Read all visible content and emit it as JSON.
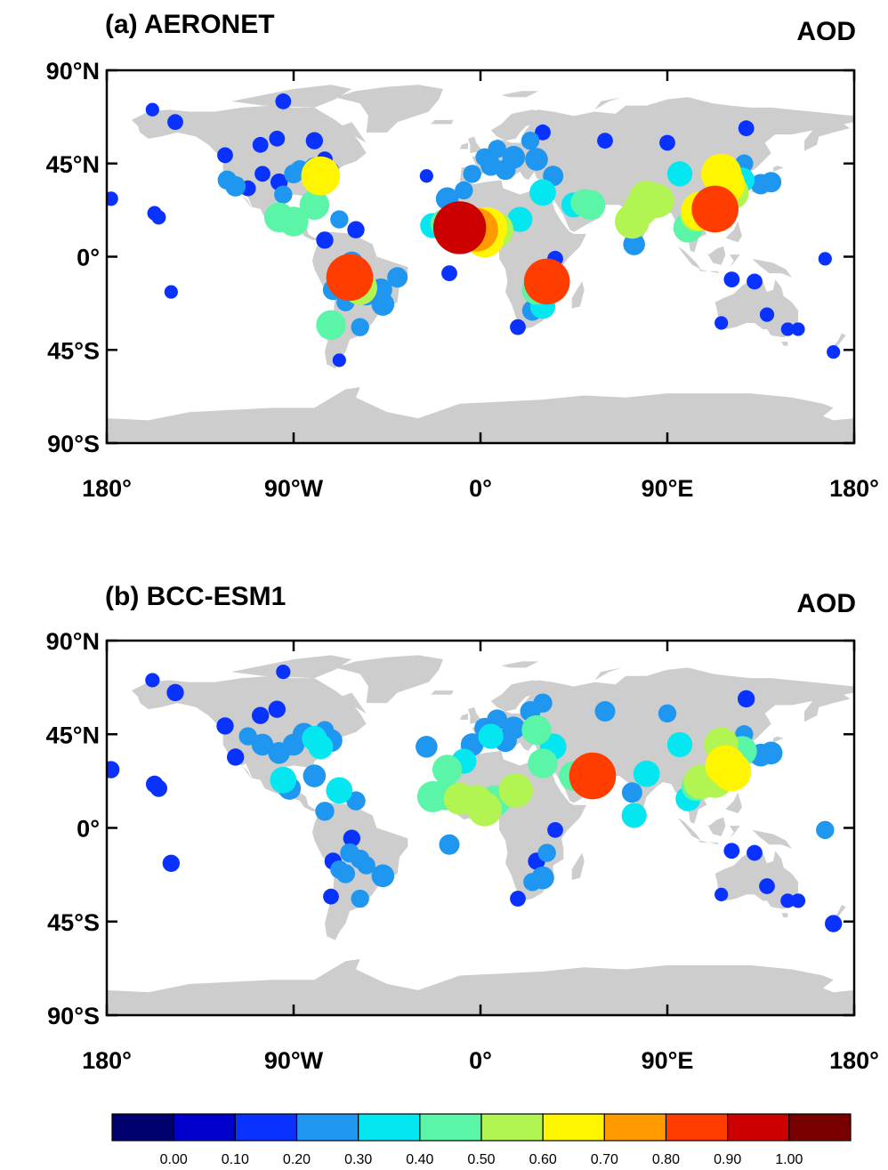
{
  "panels": [
    {
      "title": "(a) AERONET",
      "variable": "AOD",
      "y_ticks": [
        "90°N",
        "45°N",
        "0°",
        "45°S",
        "90°S"
      ],
      "x_ticks": [
        "180°",
        "90°W",
        "0°",
        "90°E",
        "180°"
      ]
    },
    {
      "title": "(b) BCC-ESM1",
      "variable": "AOD",
      "y_ticks": [
        "90°N",
        "45°N",
        "0°",
        "45°S",
        "90°S"
      ],
      "x_ticks": [
        "180°",
        "90°W",
        "0°",
        "90°E",
        "180°"
      ]
    }
  ],
  "colorbar": {
    "labels": [
      "0.00",
      "0.10",
      "0.20",
      "0.30",
      "0.40",
      "0.50",
      "0.60",
      "0.70",
      "0.80",
      "0.90",
      "1.00"
    ],
    "colors": [
      "#00006e",
      "#0000cd",
      "#0a32ff",
      "#1f96ef",
      "#04e6f0",
      "#5af5a6",
      "#b2f451",
      "#fff500",
      "#ff9b00",
      "#ff3d00",
      "#cd0000",
      "#780000"
    ]
  },
  "chart_data": [
    {
      "type": "scatter",
      "title": "(a) AERONET",
      "variable": "AOD",
      "xlim": [
        -180,
        180
      ],
      "ylim": [
        -90,
        90
      ],
      "points": [
        {
          "lon": -178,
          "lat": 28,
          "aod": 0.12
        },
        {
          "lon": -158,
          "lat": 71,
          "aod": 0.1
        },
        {
          "lon": -157,
          "lat": 21,
          "aod": 0.12
        },
        {
          "lon": -155,
          "lat": 19,
          "aod": 0.12
        },
        {
          "lon": -149,
          "lat": -17,
          "aod": 0.1
        },
        {
          "lon": -147,
          "lat": 65,
          "aod": 0.15
        },
        {
          "lon": -123,
          "lat": 49,
          "aod": 0.15
        },
        {
          "lon": -122,
          "lat": 37,
          "aod": 0.22
        },
        {
          "lon": -118,
          "lat": 34,
          "aod": 0.25
        },
        {
          "lon": -112,
          "lat": 33,
          "aod": 0.15
        },
        {
          "lon": -105,
          "lat": 40,
          "aod": 0.15
        },
        {
          "lon": -97,
          "lat": 36,
          "aod": 0.18
        },
        {
          "lon": -95,
          "lat": 30,
          "aod": 0.2
        },
        {
          "lon": -90,
          "lat": 40,
          "aod": 0.22
        },
        {
          "lon": -87,
          "lat": 42,
          "aod": 0.22
        },
        {
          "lon": -80,
          "lat": 43,
          "aod": 0.25
        },
        {
          "lon": -77,
          "lat": 39,
          "aod": 0.65
        },
        {
          "lon": -75,
          "lat": 47,
          "aod": 0.15
        },
        {
          "lon": -72,
          "lat": 42,
          "aod": 0.15
        },
        {
          "lon": -80,
          "lat": 25,
          "aod": 0.45
        },
        {
          "lon": -90,
          "lat": 17,
          "aod": 0.45
        },
        {
          "lon": -97,
          "lat": 19,
          "aod": 0.45
        },
        {
          "lon": -106,
          "lat": 54,
          "aod": 0.15
        },
        {
          "lon": -98,
          "lat": 57,
          "aod": 0.15
        },
        {
          "lon": -95,
          "lat": 75,
          "aod": 0.15
        },
        {
          "lon": -80,
          "lat": 56,
          "aod": 0.18
        },
        {
          "lon": -68,
          "lat": 18,
          "aod": 0.2
        },
        {
          "lon": -60,
          "lat": 13,
          "aod": 0.18
        },
        {
          "lon": -75,
          "lat": 8,
          "aod": 0.18
        },
        {
          "lon": -62,
          "lat": -3,
          "aod": 0.3
        },
        {
          "lon": -63,
          "lat": -10,
          "aod": 0.82
        },
        {
          "lon": -58,
          "lat": -15,
          "aod": 0.55
        },
        {
          "lon": -55,
          "lat": -18,
          "aod": 0.3
        },
        {
          "lon": -48,
          "lat": -16,
          "aod": 0.3
        },
        {
          "lon": -47,
          "lat": -23,
          "aod": 0.3
        },
        {
          "lon": -40,
          "lat": -10,
          "aod": 0.25
        },
        {
          "lon": -71,
          "lat": -16,
          "aod": 0.25
        },
        {
          "lon": -65,
          "lat": -22,
          "aod": 0.2
        },
        {
          "lon": -58,
          "lat": -34,
          "aod": 0.2
        },
        {
          "lon": -72,
          "lat": -33,
          "aod": 0.45
        },
        {
          "lon": -68,
          "lat": -50,
          "aod": 0.1
        },
        {
          "lon": -26,
          "lat": 39,
          "aod": 0.1
        },
        {
          "lon": -23,
          "lat": 15,
          "aod": 0.35
        },
        {
          "lon": -17,
          "lat": 16,
          "aod": 0.45
        },
        {
          "lon": -16,
          "lat": 28,
          "aod": 0.3
        },
        {
          "lon": -10,
          "lat": 14,
          "aod": 0.95
        },
        {
          "lon": -2,
          "lat": 13,
          "aod": 0.75
        },
        {
          "lon": 3,
          "lat": 14,
          "aod": 0.7
        },
        {
          "lon": 2,
          "lat": 9,
          "aod": 0.65
        },
        {
          "lon": 7,
          "lat": 13,
          "aod": 0.6
        },
        {
          "lon": -15,
          "lat": -8,
          "aod": 0.15
        },
        {
          "lon": -8,
          "lat": 32,
          "aod": 0.2
        },
        {
          "lon": -4,
          "lat": 40,
          "aod": 0.2
        },
        {
          "lon": 2,
          "lat": 48,
          "aod": 0.2
        },
        {
          "lon": 5,
          "lat": 44,
          "aod": 0.25
        },
        {
          "lon": 12,
          "lat": 42,
          "aod": 0.25
        },
        {
          "lon": 8,
          "lat": 52,
          "aod": 0.2
        },
        {
          "lon": 16,
          "lat": 48,
          "aod": 0.3
        },
        {
          "lon": 24,
          "lat": 56,
          "aod": 0.2
        },
        {
          "lon": 30,
          "lat": 60,
          "aod": 0.15
        },
        {
          "lon": 27,
          "lat": 47,
          "aod": 0.3
        },
        {
          "lon": 35,
          "lat": 39,
          "aod": 0.25
        },
        {
          "lon": 30,
          "lat": 31,
          "aod": 0.38
        },
        {
          "lon": 19,
          "lat": 18,
          "aod": 0.35
        },
        {
          "lon": 32,
          "lat": -12,
          "aod": 0.8
        },
        {
          "lon": 27,
          "lat": -16,
          "aod": 0.45
        },
        {
          "lon": 30,
          "lat": -24,
          "aod": 0.35
        },
        {
          "lon": 25,
          "lat": -26,
          "aod": 0.25
        },
        {
          "lon": 18,
          "lat": -34,
          "aod": 0.15
        },
        {
          "lon": 36,
          "lat": -1,
          "aod": 0.15
        },
        {
          "lon": 45,
          "lat": 25,
          "aod": 0.35
        },
        {
          "lon": 50,
          "lat": 26,
          "aod": 0.4
        },
        {
          "lon": 53,
          "lat": 25,
          "aod": 0.45
        },
        {
          "lon": 60,
          "lat": 56,
          "aod": 0.15
        },
        {
          "lon": 73,
          "lat": 17,
          "aod": 0.55
        },
        {
          "lon": 77,
          "lat": 23,
          "aod": 0.55
        },
        {
          "lon": 80,
          "lat": 28,
          "aod": 0.58
        },
        {
          "lon": 74,
          "lat": 6,
          "aod": 0.28
        },
        {
          "lon": 85,
          "lat": 27,
          "aod": 0.55
        },
        {
          "lon": 90,
          "lat": 55,
          "aod": 0.15
        },
        {
          "lon": 96,
          "lat": 40,
          "aod": 0.35
        },
        {
          "lon": 100,
          "lat": 14,
          "aod": 0.45
        },
        {
          "lon": 104,
          "lat": 20,
          "aod": 0.5
        },
        {
          "lon": 106,
          "lat": 22,
          "aod": 0.65
        },
        {
          "lon": 113,
          "lat": 23,
          "aod": 0.82
        },
        {
          "lon": 116,
          "lat": 40,
          "aod": 0.68
        },
        {
          "lon": 118,
          "lat": 35,
          "aod": 0.65
        },
        {
          "lon": 121,
          "lat": 31,
          "aod": 0.55
        },
        {
          "lon": 126,
          "lat": 37,
          "aod": 0.35
        },
        {
          "lon": 127,
          "lat": 45,
          "aod": 0.2
        },
        {
          "lon": 135,
          "lat": 35,
          "aod": 0.25
        },
        {
          "lon": 140,
          "lat": 36,
          "aod": 0.25
        },
        {
          "lon": 128,
          "lat": 62,
          "aod": 0.15
        },
        {
          "lon": 121,
          "lat": -11,
          "aod": 0.15
        },
        {
          "lon": 132,
          "lat": -12,
          "aod": 0.15
        },
        {
          "lon": 116,
          "lat": -32,
          "aod": 0.1
        },
        {
          "lon": 138,
          "lat": -28,
          "aod": 0.12
        },
        {
          "lon": 148,
          "lat": -35,
          "aod": 0.1
        },
        {
          "lon": 153,
          "lat": -35,
          "aod": 0.1
        },
        {
          "lon": 166,
          "lat": -1,
          "aod": 0.1
        },
        {
          "lon": 170,
          "lat": -46,
          "aod": 0.1
        }
      ]
    },
    {
      "type": "scatter",
      "title": "(b) BCC-ESM1",
      "variable": "AOD",
      "xlim": [
        -180,
        180
      ],
      "ylim": [
        -90,
        90
      ],
      "points": [
        {
          "lon": -178,
          "lat": 28,
          "aod": 0.18
        },
        {
          "lon": -158,
          "lat": 71,
          "aod": 0.12
        },
        {
          "lon": -157,
          "lat": 21,
          "aod": 0.18
        },
        {
          "lon": -155,
          "lat": 19,
          "aod": 0.18
        },
        {
          "lon": -149,
          "lat": -17,
          "aod": 0.18
        },
        {
          "lon": -147,
          "lat": 65,
          "aod": 0.18
        },
        {
          "lon": -123,
          "lat": 49,
          "aod": 0.18
        },
        {
          "lon": -118,
          "lat": 34,
          "aod": 0.18
        },
        {
          "lon": -112,
          "lat": 44,
          "aod": 0.2
        },
        {
          "lon": -105,
          "lat": 40,
          "aod": 0.28
        },
        {
          "lon": -97,
          "lat": 36,
          "aod": 0.28
        },
        {
          "lon": -90,
          "lat": 40,
          "aod": 0.28
        },
        {
          "lon": -85,
          "lat": 45,
          "aod": 0.3
        },
        {
          "lon": -80,
          "lat": 43,
          "aod": 0.35
        },
        {
          "lon": -77,
          "lat": 39,
          "aod": 0.35
        },
        {
          "lon": -72,
          "lat": 42,
          "aod": 0.3
        },
        {
          "lon": -75,
          "lat": 47,
          "aod": 0.2
        },
        {
          "lon": -80,
          "lat": 25,
          "aod": 0.3
        },
        {
          "lon": -95,
          "lat": 23,
          "aod": 0.38
        },
        {
          "lon": -92,
          "lat": 19,
          "aod": 0.3
        },
        {
          "lon": -106,
          "lat": 54,
          "aod": 0.18
        },
        {
          "lon": -98,
          "lat": 57,
          "aod": 0.18
        },
        {
          "lon": -95,
          "lat": 75,
          "aod": 0.12
        },
        {
          "lon": -68,
          "lat": 18,
          "aod": 0.38
        },
        {
          "lon": -60,
          "lat": 13,
          "aod": 0.22
        },
        {
          "lon": -75,
          "lat": 8,
          "aod": 0.22
        },
        {
          "lon": -62,
          "lat": -5,
          "aod": 0.18
        },
        {
          "lon": -63,
          "lat": -12,
          "aod": 0.22
        },
        {
          "lon": -58,
          "lat": -15,
          "aod": 0.22
        },
        {
          "lon": -55,
          "lat": -18,
          "aod": 0.2
        },
        {
          "lon": -47,
          "lat": -23,
          "aod": 0.3
        },
        {
          "lon": -71,
          "lat": -16,
          "aod": 0.18
        },
        {
          "lon": -65,
          "lat": -22,
          "aod": 0.22
        },
        {
          "lon": -58,
          "lat": -34,
          "aod": 0.2
        },
        {
          "lon": -72,
          "lat": -33,
          "aod": 0.15
        },
        {
          "lon": -68,
          "lat": -20,
          "aod": 0.2
        },
        {
          "lon": -26,
          "lat": 39,
          "aod": 0.28
        },
        {
          "lon": -23,
          "lat": 15,
          "aod": 0.48
        },
        {
          "lon": -17,
          "lat": 16,
          "aod": 0.48
        },
        {
          "lon": -16,
          "lat": 28,
          "aod": 0.45
        },
        {
          "lon": -10,
          "lat": 14,
          "aod": 0.5
        },
        {
          "lon": -2,
          "lat": 13,
          "aod": 0.5
        },
        {
          "lon": 2,
          "lat": 9,
          "aod": 0.55
        },
        {
          "lon": 7,
          "lat": 13,
          "aod": 0.48
        },
        {
          "lon": -15,
          "lat": -8,
          "aod": 0.25
        },
        {
          "lon": -8,
          "lat": 32,
          "aod": 0.35
        },
        {
          "lon": -4,
          "lat": 40,
          "aod": 0.3
        },
        {
          "lon": 2,
          "lat": 48,
          "aod": 0.25
        },
        {
          "lon": 5,
          "lat": 44,
          "aod": 0.35
        },
        {
          "lon": 12,
          "lat": 42,
          "aod": 0.3
        },
        {
          "lon": 8,
          "lat": 52,
          "aod": 0.25
        },
        {
          "lon": 16,
          "lat": 48,
          "aod": 0.3
        },
        {
          "lon": 24,
          "lat": 56,
          "aod": 0.25
        },
        {
          "lon": 30,
          "lat": 60,
          "aod": 0.22
        },
        {
          "lon": 27,
          "lat": 47,
          "aod": 0.45
        },
        {
          "lon": 35,
          "lat": 39,
          "aod": 0.38
        },
        {
          "lon": 30,
          "lat": 31,
          "aod": 0.45
        },
        {
          "lon": 17,
          "lat": 18,
          "aod": 0.55
        },
        {
          "lon": 32,
          "lat": -12,
          "aod": 0.2
        },
        {
          "lon": 27,
          "lat": -16,
          "aod": 0.18
        },
        {
          "lon": 30,
          "lat": -24,
          "aod": 0.3
        },
        {
          "lon": 25,
          "lat": -26,
          "aod": 0.2
        },
        {
          "lon": 18,
          "lat": -34,
          "aod": 0.15
        },
        {
          "lon": 36,
          "lat": -1,
          "aod": 0.15
        },
        {
          "lon": 45,
          "lat": 25,
          "aod": 0.45
        },
        {
          "lon": 50,
          "lat": 26,
          "aod": 0.45
        },
        {
          "lon": 54,
          "lat": 25,
          "aod": 0.82
        },
        {
          "lon": 60,
          "lat": 56,
          "aod": 0.25
        },
        {
          "lon": 73,
          "lat": 17,
          "aod": 0.25
        },
        {
          "lon": 74,
          "lat": 6,
          "aod": 0.35
        },
        {
          "lon": 80,
          "lat": 26,
          "aod": 0.38
        },
        {
          "lon": 90,
          "lat": 55,
          "aod": 0.2
        },
        {
          "lon": 96,
          "lat": 40,
          "aod": 0.35
        },
        {
          "lon": 100,
          "lat": 14,
          "aod": 0.35
        },
        {
          "lon": 104,
          "lat": 20,
          "aod": 0.45
        },
        {
          "lon": 106,
          "lat": 22,
          "aod": 0.55
        },
        {
          "lon": 113,
          "lat": 23,
          "aod": 0.58
        },
        {
          "lon": 116,
          "lat": 40,
          "aod": 0.55
        },
        {
          "lon": 118,
          "lat": 30,
          "aod": 0.68
        },
        {
          "lon": 121,
          "lat": 27,
          "aod": 0.65
        },
        {
          "lon": 126,
          "lat": 37,
          "aod": 0.45
        },
        {
          "lon": 127,
          "lat": 45,
          "aod": 0.2
        },
        {
          "lon": 135,
          "lat": 35,
          "aod": 0.3
        },
        {
          "lon": 140,
          "lat": 36,
          "aod": 0.3
        },
        {
          "lon": 128,
          "lat": 62,
          "aod": 0.18
        },
        {
          "lon": 121,
          "lat": -11,
          "aod": 0.15
        },
        {
          "lon": 132,
          "lat": -12,
          "aod": 0.15
        },
        {
          "lon": 116,
          "lat": -32,
          "aod": 0.1
        },
        {
          "lon": 138,
          "lat": -28,
          "aod": 0.15
        },
        {
          "lon": 148,
          "lat": -35,
          "aod": 0.12
        },
        {
          "lon": 153,
          "lat": -35,
          "aod": 0.12
        },
        {
          "lon": 166,
          "lat": -1,
          "aod": 0.2
        },
        {
          "lon": 170,
          "lat": -46,
          "aod": 0.18
        }
      ]
    }
  ]
}
